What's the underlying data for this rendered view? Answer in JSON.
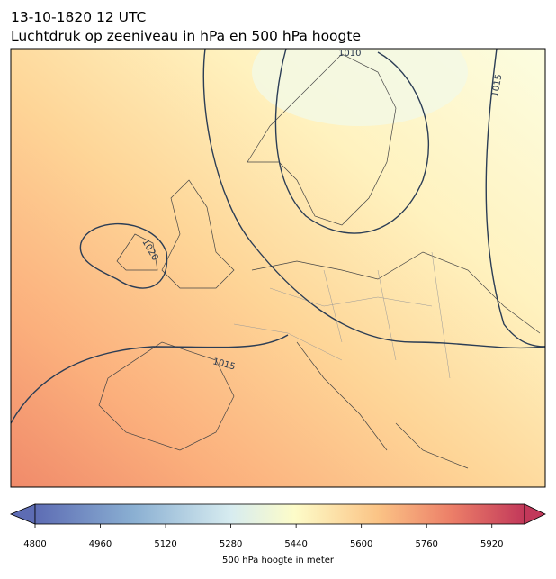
{
  "header": {
    "time": "13-10-1820 12 UTC",
    "title": "Luchtdruk op zeeniveau in hPa en 500 hPa hoogte"
  },
  "isobar_labels": [
    "1010",
    "1015",
    "1015",
    "1020"
  ],
  "colorbar": {
    "label": "500 hPa hoogte in meter",
    "range": [
      4800,
      6000
    ],
    "ticks": [
      4800,
      4960,
      5120,
      5280,
      5440,
      5600,
      5760,
      5920
    ]
  }
}
